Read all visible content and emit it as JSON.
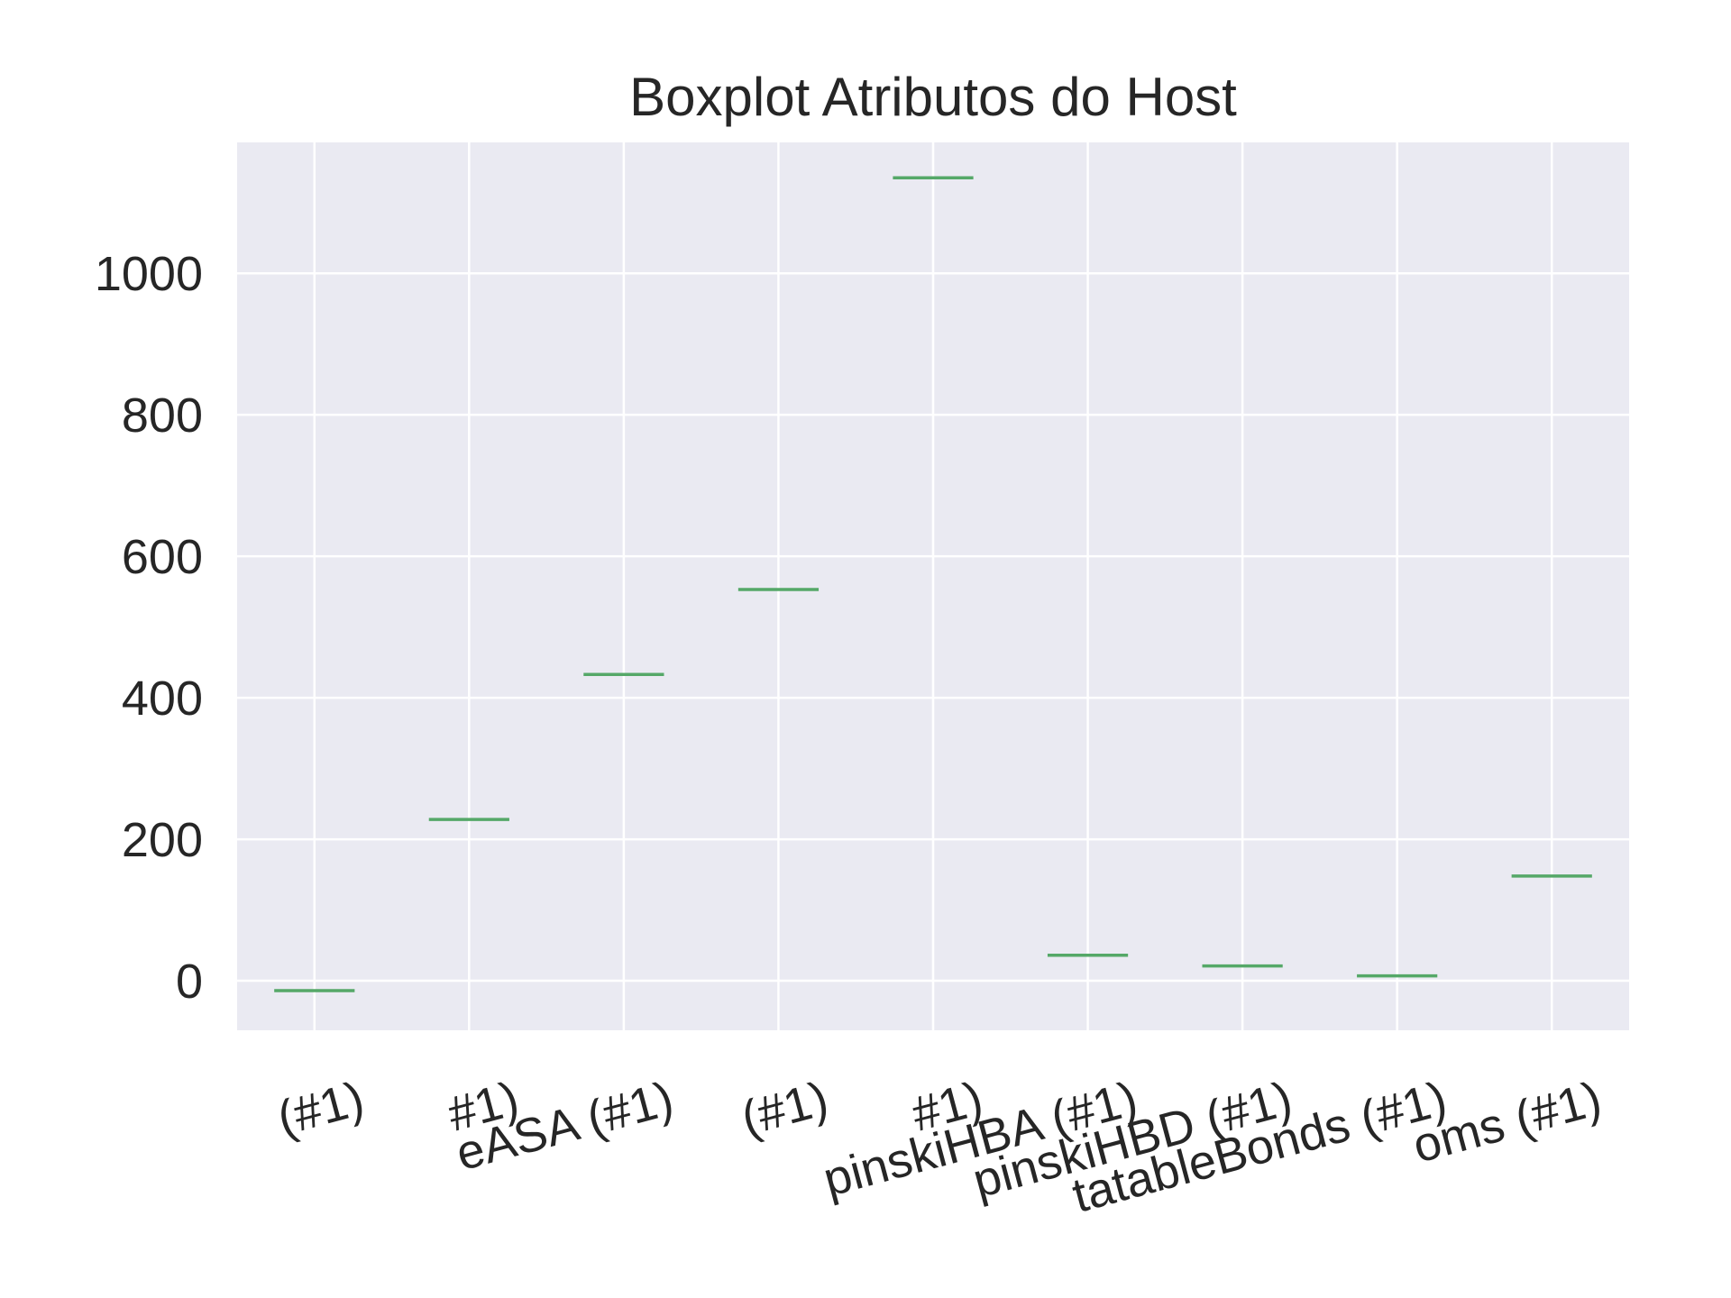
{
  "chart_data": {
    "type": "box",
    "title": "Boxplot Atributos do Host",
    "xlabel": "",
    "ylabel": "",
    "categories": [
      "(#1)",
      "#1)",
      "eASA (#1)",
      "(#1)",
      "#1)",
      "pinskiHBA (#1)",
      "pinskiHBD (#1)",
      "tatableBonds (#1)",
      "oms (#1)"
    ],
    "values": [
      -14,
      228,
      433,
      553,
      1135,
      36,
      21,
      7,
      148
    ],
    "ylim": [
      -70,
      1185
    ],
    "yticks": [
      0,
      200,
      400,
      600,
      800,
      1000
    ],
    "ytick_labels": [
      "0",
      "200",
      "400",
      "600",
      "800",
      "1000"
    ],
    "grid": true,
    "x_tick_rotation": -15,
    "colors": {
      "background": "#eaeaf2",
      "grid": "#ffffff",
      "median": "#55a868",
      "text": "#262626"
    }
  }
}
